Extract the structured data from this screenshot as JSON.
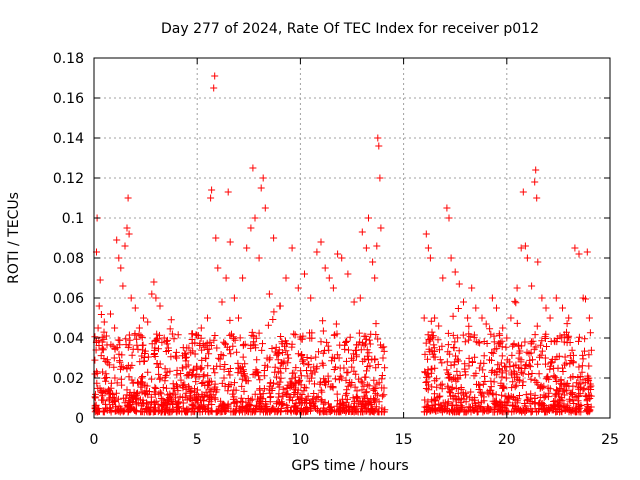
{
  "chart_data": {
    "type": "scatter",
    "title": "Day 277 of 2024, Rate Of TEC Index for receiver p012",
    "xlabel": "GPS time / hours",
    "ylabel": "ROTI / TECUs",
    "xlim": [
      0,
      25
    ],
    "ylim": [
      0,
      0.18
    ],
    "xticks": [
      0,
      5,
      10,
      15,
      20,
      25
    ],
    "yticks": [
      0,
      0.02,
      0.04,
      0.06,
      0.08,
      0.1,
      0.12,
      0.14,
      0.16,
      0.18
    ],
    "xtick_labels": [
      "0",
      "5",
      "10",
      "15",
      "20",
      "25"
    ],
    "ytick_labels": [
      "0",
      "0.02",
      "0.04",
      "0.06",
      "0.08",
      "0.1",
      "0.12",
      "0.14",
      "0.16",
      "0.18"
    ],
    "grid": true,
    "marker": "+",
    "color": "#ff0000",
    "data_gap_hours": [
      14.1,
      16.0
    ],
    "series": [
      {
        "name": "p012",
        "points": [
          [
            0.05,
            0.022
          ],
          [
            0.1,
            0.034
          ],
          [
            0.12,
            0.083
          ],
          [
            0.15,
            0.1
          ],
          [
            0.2,
            0.045
          ],
          [
            0.25,
            0.056
          ],
          [
            0.3,
            0.069
          ],
          [
            0.4,
            0.038
          ],
          [
            0.5,
            0.048
          ],
          [
            0.6,
            0.041
          ],
          [
            0.8,
            0.052
          ],
          [
            1.0,
            0.045
          ],
          [
            1.1,
            0.089
          ],
          [
            1.2,
            0.08
          ],
          [
            1.3,
            0.075
          ],
          [
            1.4,
            0.066
          ],
          [
            1.5,
            0.086
          ],
          [
            1.6,
            0.095
          ],
          [
            1.65,
            0.11
          ],
          [
            1.7,
            0.092
          ],
          [
            1.8,
            0.06
          ],
          [
            2.0,
            0.055
          ],
          [
            2.2,
            0.045
          ],
          [
            2.4,
            0.05
          ],
          [
            2.6,
            0.048
          ],
          [
            2.8,
            0.062
          ],
          [
            2.9,
            0.068
          ],
          [
            3.0,
            0.06
          ],
          [
            3.2,
            0.056
          ],
          [
            3.4,
            0.04
          ],
          [
            3.6,
            0.035
          ],
          [
            3.8,
            0.042
          ],
          [
            4.0,
            0.03
          ],
          [
            4.3,
            0.025
          ],
          [
            4.6,
            0.035
          ],
          [
            4.9,
            0.032
          ],
          [
            5.2,
            0.045
          ],
          [
            5.5,
            0.05
          ],
          [
            5.65,
            0.11
          ],
          [
            5.7,
            0.114
          ],
          [
            5.8,
            0.165
          ],
          [
            5.85,
            0.171
          ],
          [
            5.9,
            0.09
          ],
          [
            6.0,
            0.075
          ],
          [
            6.2,
            0.058
          ],
          [
            6.4,
            0.07
          ],
          [
            6.5,
            0.113
          ],
          [
            6.6,
            0.088
          ],
          [
            6.8,
            0.06
          ],
          [
            7.0,
            0.05
          ],
          [
            7.2,
            0.07
          ],
          [
            7.4,
            0.085
          ],
          [
            7.6,
            0.095
          ],
          [
            7.7,
            0.125
          ],
          [
            7.8,
            0.1
          ],
          [
            8.0,
            0.08
          ],
          [
            8.1,
            0.115
          ],
          [
            8.2,
            0.12
          ],
          [
            8.3,
            0.105
          ],
          [
            8.5,
            0.062
          ],
          [
            8.7,
            0.09
          ],
          [
            9.0,
            0.056
          ],
          [
            9.3,
            0.07
          ],
          [
            9.6,
            0.085
          ],
          [
            9.9,
            0.065
          ],
          [
            10.2,
            0.072
          ],
          [
            10.5,
            0.06
          ],
          [
            10.8,
            0.083
          ],
          [
            11.0,
            0.088
          ],
          [
            11.2,
            0.075
          ],
          [
            11.4,
            0.07
          ],
          [
            11.6,
            0.065
          ],
          [
            11.8,
            0.082
          ],
          [
            12.0,
            0.08
          ],
          [
            12.3,
            0.072
          ],
          [
            12.6,
            0.058
          ],
          [
            12.9,
            0.06
          ],
          [
            13.0,
            0.093
          ],
          [
            13.2,
            0.085
          ],
          [
            13.3,
            0.1
          ],
          [
            13.5,
            0.078
          ],
          [
            13.6,
            0.07
          ],
          [
            13.7,
            0.086
          ],
          [
            13.75,
            0.14
          ],
          [
            13.8,
            0.136
          ],
          [
            13.85,
            0.12
          ],
          [
            13.9,
            0.095
          ],
          [
            14.0,
            0.03
          ],
          [
            14.05,
            0.015
          ],
          [
            13.95,
            0.005
          ],
          [
            16.0,
            0.05
          ],
          [
            16.1,
            0.092
          ],
          [
            16.2,
            0.085
          ],
          [
            16.3,
            0.08
          ],
          [
            16.5,
            0.05
          ],
          [
            16.7,
            0.046
          ],
          [
            16.9,
            0.07
          ],
          [
            17.1,
            0.105
          ],
          [
            17.2,
            0.1
          ],
          [
            17.3,
            0.08
          ],
          [
            17.5,
            0.073
          ],
          [
            17.7,
            0.067
          ],
          [
            17.9,
            0.058
          ],
          [
            18.1,
            0.05
          ],
          [
            18.3,
            0.065
          ],
          [
            18.5,
            0.055
          ],
          [
            18.8,
            0.05
          ],
          [
            19.0,
            0.047
          ],
          [
            19.3,
            0.06
          ],
          [
            19.5,
            0.055
          ],
          [
            19.8,
            0.045
          ],
          [
            20.0,
            0.04
          ],
          [
            20.2,
            0.05
          ],
          [
            20.5,
            0.065
          ],
          [
            20.7,
            0.085
          ],
          [
            20.8,
            0.113
          ],
          [
            20.9,
            0.086
          ],
          [
            21.0,
            0.08
          ],
          [
            21.2,
            0.066
          ],
          [
            21.35,
            0.118
          ],
          [
            21.4,
            0.124
          ],
          [
            21.45,
            0.11
          ],
          [
            21.5,
            0.078
          ],
          [
            21.7,
            0.06
          ],
          [
            21.9,
            0.055
          ],
          [
            22.1,
            0.05
          ],
          [
            22.4,
            0.06
          ],
          [
            22.7,
            0.055
          ],
          [
            23.0,
            0.05
          ],
          [
            23.3,
            0.085
          ],
          [
            23.5,
            0.082
          ],
          [
            23.7,
            0.06
          ],
          [
            23.9,
            0.083
          ],
          [
            24.0,
            0.05
          ],
          [
            2.5,
            0.012
          ],
          [
            6.3,
            0.02
          ],
          [
            9.5,
            0.018
          ],
          [
            12.0,
            0.02
          ],
          [
            17.5,
            0.02
          ],
          [
            22.0,
            0.015
          ]
        ]
      }
    ],
    "dense_band": {
      "description_ranges_hours": [
        [
          0,
          14.1
        ],
        [
          16.0,
          24.1
        ]
      ],
      "typical_max": 0.04,
      "min": 0.003
    }
  }
}
